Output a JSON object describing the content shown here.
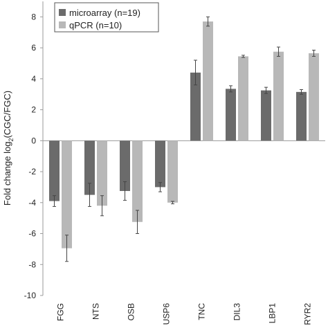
{
  "chart_data": {
    "type": "bar",
    "ylabel_main": "Fold change log",
    "ylabel_sub": "2",
    "ylabel_tail": "(CGC/FGC)",
    "ylim": [
      -10,
      9
    ],
    "yticks": [
      -10,
      -8,
      -6,
      -4,
      -2,
      0,
      2,
      4,
      6,
      8
    ],
    "grid": false,
    "legend_position": "top-left",
    "categories": [
      "FGG",
      "NTS",
      "OSB",
      "USP6",
      "TNC",
      "DIL3",
      "LBP1",
      "RYR2"
    ],
    "series": [
      {
        "name": "microarray (n=19)",
        "color": "#6b6b6b",
        "values": [
          -3.9,
          -3.5,
          -3.25,
          -3.0,
          4.4,
          3.35,
          3.25,
          3.15
        ],
        "errors": [
          0.35,
          0.75,
          0.6,
          0.3,
          0.8,
          0.2,
          0.2,
          0.15
        ]
      },
      {
        "name": "qPCR (n=10)",
        "color": "#b8b8b8",
        "values": [
          -6.95,
          -4.2,
          -5.25,
          -4.0,
          7.7,
          5.45,
          5.75,
          5.65
        ],
        "errors": [
          0.85,
          0.65,
          0.75,
          0.08,
          0.3,
          0.07,
          0.3,
          0.2
        ]
      }
    ]
  }
}
